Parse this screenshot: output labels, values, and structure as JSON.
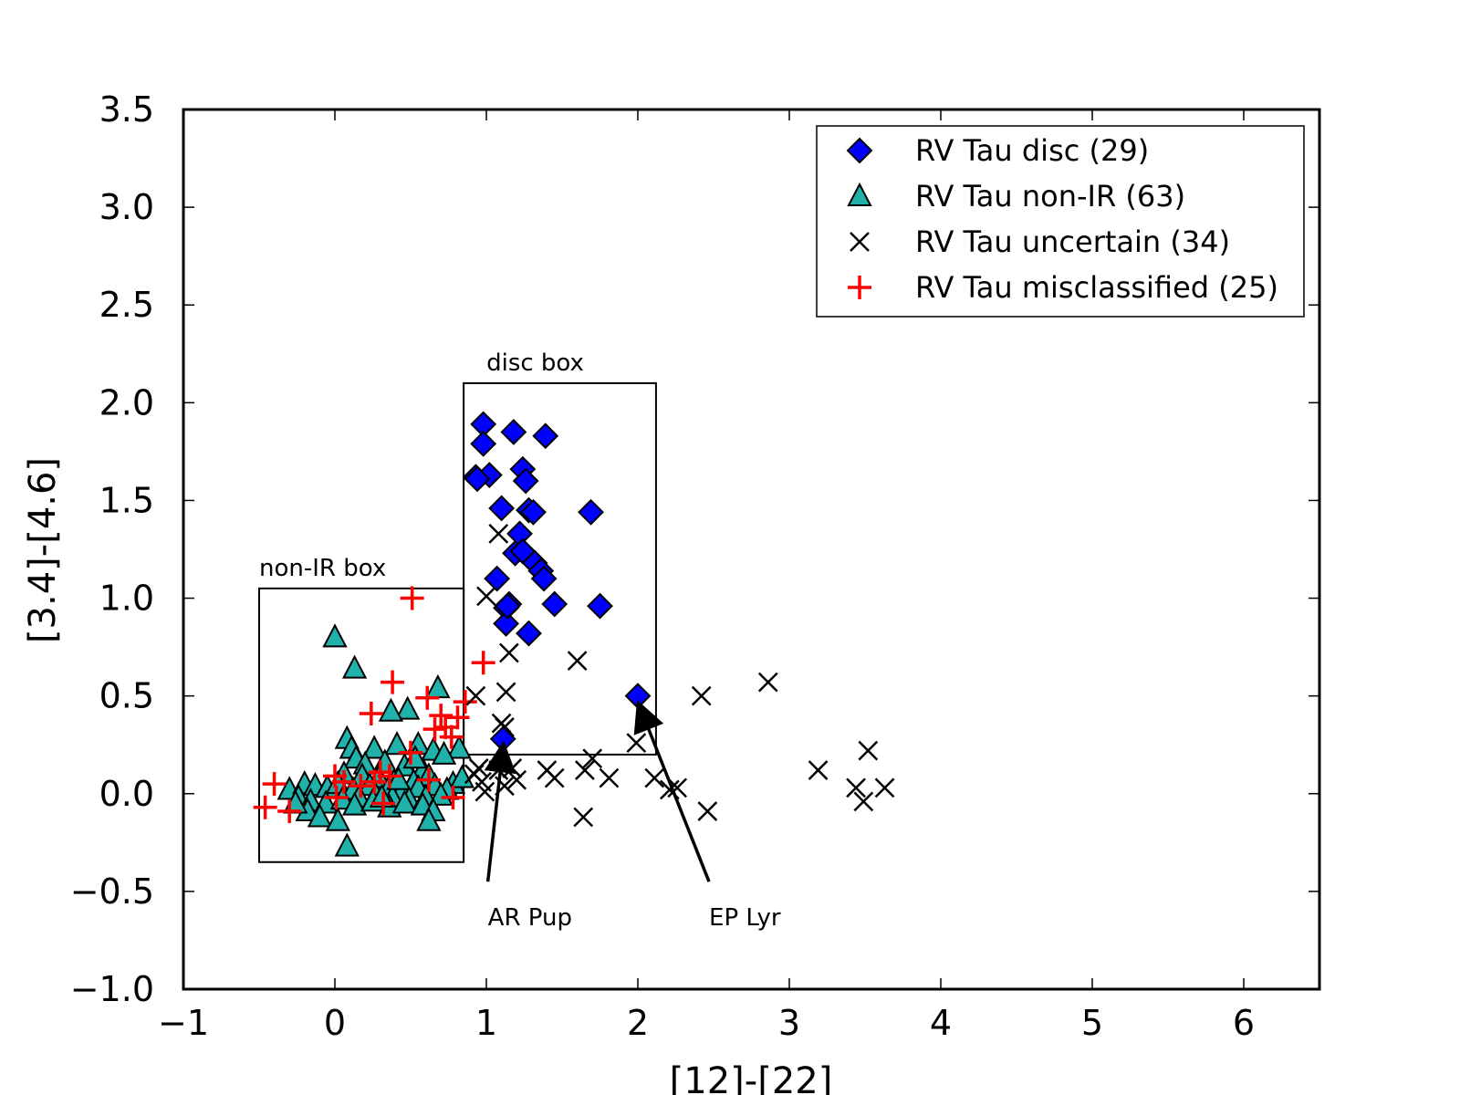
{
  "chart_data": {
    "type": "scatter",
    "xlabel": "[12]-[22]",
    "ylabel": "[3.4]-[4.6]",
    "xlim": [
      -1,
      6.5
    ],
    "ylim": [
      -1.0,
      3.5
    ],
    "x_ticks": [
      -1,
      0,
      1,
      2,
      3,
      4,
      5,
      6
    ],
    "x_tick_labels": [
      "−1",
      "0",
      "1",
      "2",
      "3",
      "4",
      "5",
      "6"
    ],
    "y_ticks": [
      -1.0,
      -0.5,
      0.0,
      0.5,
      1.0,
      1.5,
      2.0,
      2.5,
      3.0,
      3.5
    ],
    "y_tick_labels": [
      "−1.0",
      "−0.5",
      "0.0",
      "0.5",
      "1.0",
      "1.5",
      "2.0",
      "2.5",
      "3.0",
      "3.5"
    ],
    "grid": false,
    "legend_position": "top-right",
    "series": [
      {
        "name": "RV Tau disc (29)",
        "marker": "diamond",
        "color": "#0000ff",
        "points": [
          [
            0.98,
            1.89
          ],
          [
            1.18,
            1.85
          ],
          [
            1.39,
            1.83
          ],
          [
            0.98,
            1.79
          ],
          [
            1.24,
            1.66
          ],
          [
            0.93,
            1.62
          ],
          [
            1.02,
            1.63
          ],
          [
            0.94,
            1.61
          ],
          [
            1.26,
            1.6
          ],
          [
            1.1,
            1.46
          ],
          [
            1.28,
            1.45
          ],
          [
            1.31,
            1.44
          ],
          [
            1.69,
            1.44
          ],
          [
            1.22,
            1.33
          ],
          [
            1.19,
            1.23
          ],
          [
            1.24,
            1.24
          ],
          [
            1.32,
            1.18
          ],
          [
            1.36,
            1.14
          ],
          [
            1.38,
            1.1
          ],
          [
            1.07,
            1.1
          ],
          [
            1.15,
            0.97
          ],
          [
            1.45,
            0.97
          ],
          [
            1.13,
            0.95
          ],
          [
            1.75,
            0.96
          ],
          [
            1.13,
            0.87
          ],
          [
            1.28,
            0.82
          ],
          [
            2.0,
            0.5
          ],
          [
            1.11,
            0.28
          ],
          [
            1.14,
            0.96
          ]
        ]
      },
      {
        "name": "RV Tau non-IR (63)",
        "marker": "triangle",
        "color": "#20b2aa",
        "points": [
          [
            0.0,
            0.8
          ],
          [
            0.13,
            0.64
          ],
          [
            0.68,
            0.54
          ],
          [
            0.48,
            0.43
          ],
          [
            0.37,
            0.42
          ],
          [
            0.08,
            0.28
          ],
          [
            0.11,
            0.23
          ],
          [
            0.26,
            0.23
          ],
          [
            0.41,
            0.25
          ],
          [
            0.55,
            0.25
          ],
          [
            0.65,
            0.22
          ],
          [
            0.82,
            0.23
          ],
          [
            0.14,
            0.18
          ],
          [
            0.2,
            0.15
          ],
          [
            0.33,
            0.16
          ],
          [
            0.46,
            0.14
          ],
          [
            0.58,
            0.12
          ],
          [
            0.72,
            0.2
          ],
          [
            0.06,
            0.1
          ],
          [
            0.18,
            0.09
          ],
          [
            0.29,
            0.08
          ],
          [
            0.39,
            0.06
          ],
          [
            0.52,
            0.06
          ],
          [
            0.62,
            0.09
          ],
          [
            0.78,
            0.05
          ],
          [
            0.84,
            0.08
          ],
          [
            -0.3,
            0.02
          ],
          [
            -0.2,
            0.05
          ],
          [
            -0.13,
            0.04
          ],
          [
            -0.05,
            0.03
          ],
          [
            0.02,
            0.05
          ],
          [
            0.12,
            0.02
          ],
          [
            0.23,
            0.04
          ],
          [
            0.35,
            0.02
          ],
          [
            0.44,
            0.01
          ],
          [
            0.55,
            0.03
          ],
          [
            0.66,
            0.04
          ],
          [
            0.74,
            0.02
          ],
          [
            -0.24,
            -0.02
          ],
          [
            -0.16,
            -0.04
          ],
          [
            -0.06,
            -0.05
          ],
          [
            0.05,
            -0.03
          ],
          [
            0.16,
            -0.02
          ],
          [
            0.27,
            -0.01
          ],
          [
            0.38,
            -0.02
          ],
          [
            0.49,
            -0.03
          ],
          [
            0.6,
            -0.02
          ],
          [
            0.7,
            -0.01
          ],
          [
            -0.18,
            -0.09
          ],
          [
            -0.1,
            -0.12
          ],
          [
            0.02,
            -0.14
          ],
          [
            0.13,
            -0.06
          ],
          [
            0.25,
            -0.04
          ],
          [
            0.36,
            -0.07
          ],
          [
            0.46,
            -0.05
          ],
          [
            0.58,
            -0.06
          ],
          [
            0.65,
            -0.09
          ],
          [
            0.62,
            -0.14
          ],
          [
            0.08,
            -0.27
          ],
          [
            -0.26,
            -0.05
          ],
          [
            0.31,
            -0.02
          ],
          [
            0.42,
            0.07
          ],
          [
            0.53,
            0.18
          ]
        ]
      },
      {
        "name": "RV Tau uncertain (34)",
        "marker": "x",
        "color": "#000000",
        "points": [
          [
            1.08,
            1.33
          ],
          [
            1.0,
            1.01
          ],
          [
            1.15,
            0.72
          ],
          [
            1.6,
            0.68
          ],
          [
            2.42,
            0.5
          ],
          [
            2.86,
            0.57
          ],
          [
            0.93,
            0.5
          ],
          [
            1.13,
            0.52
          ],
          [
            1.12,
            0.34
          ],
          [
            1.1,
            0.36
          ],
          [
            1.7,
            0.18
          ],
          [
            1.99,
            0.26
          ],
          [
            3.52,
            0.22
          ],
          [
            3.19,
            0.12
          ],
          [
            1.4,
            0.12
          ],
          [
            1.45,
            0.08
          ],
          [
            1.65,
            0.12
          ],
          [
            1.81,
            0.08
          ],
          [
            2.11,
            0.08
          ],
          [
            2.21,
            0.02
          ],
          [
            2.26,
            0.03
          ],
          [
            3.44,
            0.03
          ],
          [
            3.63,
            0.03
          ],
          [
            3.49,
            -0.04
          ],
          [
            2.46,
            -0.09
          ],
          [
            1.64,
            -0.12
          ],
          [
            0.92,
            0.1
          ],
          [
            0.97,
            0.06
          ],
          [
            0.99,
            0.01
          ],
          [
            1.08,
            0.12
          ],
          [
            1.12,
            0.04
          ],
          [
            1.17,
            0.13
          ],
          [
            1.2,
            0.07
          ],
          [
            0.95,
            0.13
          ]
        ]
      },
      {
        "name": "RV Tau misclassified (25)",
        "marker": "plus",
        "color": "#ff0000",
        "points": [
          [
            0.51,
            1.0
          ],
          [
            0.98,
            0.67
          ],
          [
            0.38,
            0.57
          ],
          [
            0.61,
            0.49
          ],
          [
            0.86,
            0.47
          ],
          [
            0.24,
            0.41
          ],
          [
            0.7,
            0.4
          ],
          [
            0.81,
            0.39
          ],
          [
            0.66,
            0.33
          ],
          [
            0.73,
            0.34
          ],
          [
            0.77,
            0.29
          ],
          [
            0.5,
            0.21
          ],
          [
            0.3,
            0.11
          ],
          [
            0.0,
            0.09
          ],
          [
            0.06,
            0.06
          ],
          [
            0.17,
            0.04
          ],
          [
            0.26,
            0.06
          ],
          [
            0.62,
            0.07
          ],
          [
            0.36,
            0.09
          ],
          [
            -0.4,
            0.05
          ],
          [
            -0.46,
            -0.07
          ],
          [
            -0.3,
            -0.09
          ],
          [
            0.01,
            -0.02
          ],
          [
            0.32,
            -0.05
          ],
          [
            0.78,
            -0.02
          ]
        ]
      }
    ],
    "boxes": [
      {
        "name": "non-IR box",
        "x0": -0.5,
        "x1": 0.85,
        "y0": -0.35,
        "y1": 1.05
      },
      {
        "name": "disc box",
        "x0": 0.85,
        "x1": 2.12,
        "y0": 0.2,
        "y1": 2.1
      }
    ],
    "annotations": [
      {
        "text": "AR Pup",
        "from": [
          1.01,
          -0.45
        ],
        "to": [
          1.11,
          0.24
        ]
      },
      {
        "text": "EP Lyr",
        "from": [
          2.47,
          -0.45
        ],
        "to": [
          2.01,
          0.45
        ]
      }
    ]
  }
}
